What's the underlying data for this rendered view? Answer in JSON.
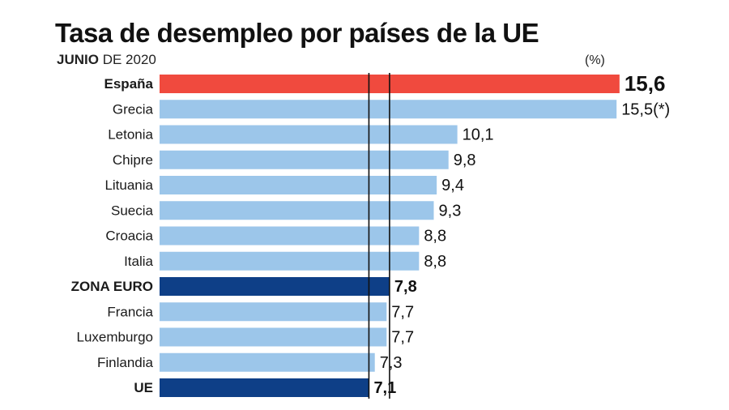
{
  "title": "Tasa de desempleo por países de la UE",
  "subtitle": {
    "month": "JUNIO",
    "rest": " DE 2020"
  },
  "unit": "(%)",
  "chart_data": {
    "type": "bar",
    "orientation": "horizontal",
    "title": "Tasa de desempleo por países de la UE",
    "unit": "(%)",
    "categories": [
      "España",
      "Grecia",
      "Letonia",
      "Chipre",
      "Lituania",
      "Suecia",
      "Croacia",
      "Italia",
      "ZONA EURO",
      "Francia",
      "Luxemburgo",
      "Finlandia",
      "UE"
    ],
    "values": [
      15.6,
      15.5,
      10.1,
      9.8,
      9.4,
      9.3,
      8.8,
      8.8,
      7.8,
      7.7,
      7.7,
      7.3,
      7.1
    ],
    "value_labels": [
      "15,6",
      "15,5(*)",
      "10,1",
      "9,8",
      "9,4",
      "9,3",
      "8,8",
      "8,8",
      "7,8",
      "7,7",
      "7,7",
      "7,3",
      "7,1"
    ],
    "highlight": {
      "España": "#f04a3e",
      "ZONA EURO": "#0e3f87",
      "UE": "#0e3f87"
    },
    "bold_categories": [
      "España",
      "ZONA EURO",
      "UE"
    ],
    "default_color": "#9cc6ea",
    "reference_lines": [
      7.1,
      7.8
    ]
  }
}
